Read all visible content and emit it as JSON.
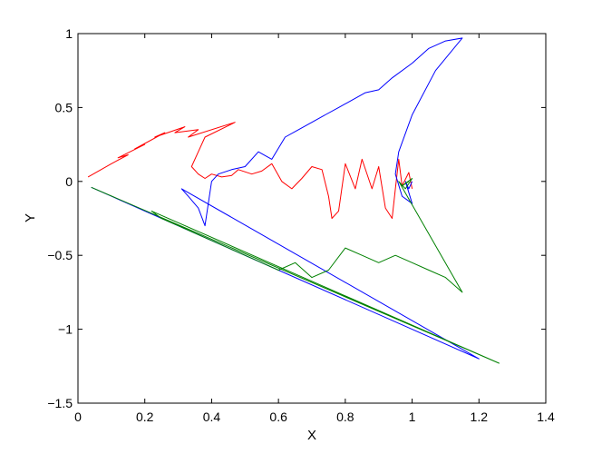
{
  "chart_data": {
    "type": "line",
    "title": "",
    "xlabel": "X",
    "ylabel": "Y",
    "xlim": [
      0,
      1.4
    ],
    "ylim": [
      -1.5,
      1
    ],
    "xticks": [
      "0",
      "0.2",
      "0.4",
      "0.6",
      "0.8",
      "1",
      "1.2",
      "1.4"
    ],
    "yticks": [
      "−1.5",
      "−1",
      "−0.5",
      "0",
      "0.5",
      "1"
    ],
    "grid": false,
    "legend": "none",
    "series": [
      {
        "color": "#ff0000",
        "x": [
          0.03,
          0.1,
          0.15,
          0.12,
          0.2,
          0.17,
          0.26,
          0.23,
          0.32,
          0.29,
          0.36,
          0.33,
          0.47,
          0.38,
          0.36,
          0.34,
          0.36,
          0.38,
          0.4,
          0.43,
          0.46,
          0.48,
          0.52,
          0.55,
          0.58,
          0.61,
          0.64,
          0.67,
          0.7,
          0.73,
          0.75,
          0.76,
          0.78,
          0.8,
          0.83,
          0.85,
          0.88,
          0.9,
          0.92,
          0.94,
          0.95,
          0.96,
          0.97,
          0.99,
          1.0
        ],
        "y": [
          0.03,
          0.12,
          0.18,
          0.16,
          0.25,
          0.22,
          0.33,
          0.3,
          0.37,
          0.33,
          0.35,
          0.3,
          0.4,
          0.3,
          0.2,
          0.1,
          0.05,
          0.02,
          0.05,
          0.03,
          0.04,
          0.08,
          0.05,
          0.07,
          0.12,
          0.0,
          -0.05,
          0.02,
          0.1,
          0.08,
          -0.1,
          -0.25,
          -0.2,
          0.12,
          -0.05,
          0.15,
          -0.05,
          0.1,
          -0.18,
          -0.25,
          -0.05,
          0.15,
          -0.03,
          0.06,
          -0.05
        ]
      },
      {
        "color": "#0000ff",
        "x": [
          0.04,
          1.2,
          0.31,
          0.33,
          0.36,
          0.38,
          0.4,
          0.42,
          0.46,
          0.5,
          0.54,
          0.58,
          0.62,
          0.66,
          0.7,
          0.74,
          0.78,
          0.82,
          0.86,
          0.9,
          0.94,
          1.0,
          1.05,
          1.1,
          1.15,
          1.07,
          1.0,
          0.96,
          0.95,
          0.97,
          1.0,
          0.98,
          0.99,
          1.0
        ],
        "y": [
          -0.04,
          -1.2,
          -0.05,
          -0.1,
          -0.18,
          -0.3,
          0.0,
          0.05,
          0.08,
          0.1,
          0.2,
          0.15,
          0.3,
          0.35,
          0.4,
          0.45,
          0.5,
          0.55,
          0.6,
          0.62,
          0.7,
          0.8,
          0.9,
          0.95,
          0.97,
          0.75,
          0.45,
          0.2,
          0.05,
          -0.1,
          -0.15,
          0.0,
          -0.05,
          0.0
        ]
      },
      {
        "color": "#008000",
        "x": [
          0.04,
          1.26,
          0.22,
          0.25,
          0.3,
          0.35,
          0.4,
          0.45,
          0.5,
          0.55,
          0.6,
          0.65,
          0.7,
          0.75,
          0.8,
          0.85,
          0.9,
          0.95,
          1.0,
          1.05,
          1.1,
          1.15,
          0.96,
          0.98,
          1.0,
          0.97,
          0.99
        ],
        "y": [
          -0.04,
          -1.23,
          -0.2,
          -0.25,
          -0.3,
          -0.35,
          -0.4,
          -0.45,
          -0.5,
          -0.55,
          -0.6,
          -0.55,
          -0.65,
          -0.6,
          -0.45,
          -0.5,
          -0.55,
          -0.5,
          -0.55,
          -0.6,
          -0.65,
          -0.75,
          0.0,
          -0.05,
          0.02,
          -0.03,
          0.0
        ]
      }
    ]
  }
}
